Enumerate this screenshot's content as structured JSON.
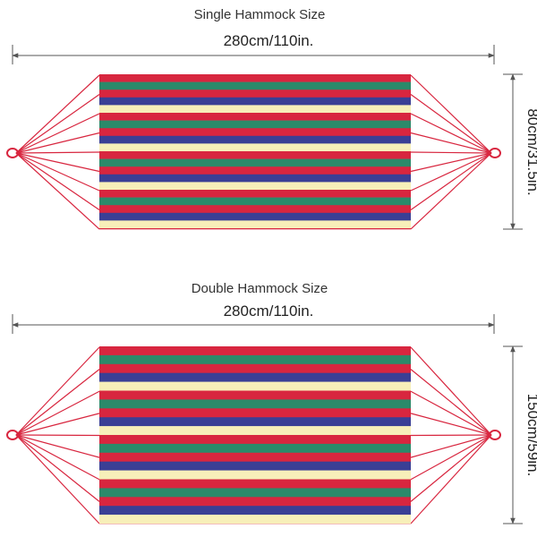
{
  "single": {
    "title": "Single Hammock Size",
    "length_label": "280cm/110in.",
    "width_label": "80cm/31.5in."
  },
  "double": {
    "title": "Double Hammock Size",
    "length_label": "280cm/110in.",
    "width_label": "150cm/59in."
  },
  "colors": {
    "red": "#d8263f",
    "green": "#2b8a6a",
    "blue": "#3a3f95",
    "cream": "#f7efb9",
    "rope": "#d8263f",
    "dimension_line": "#555555"
  },
  "stripe_pattern": [
    "red",
    "green",
    "red",
    "blue",
    "cream",
    "red",
    "green",
    "red",
    "blue",
    "cream"
  ]
}
